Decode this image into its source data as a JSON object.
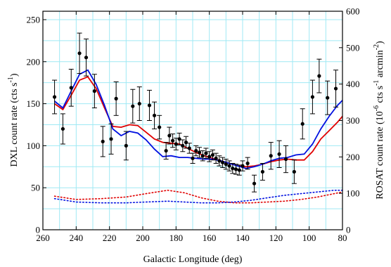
{
  "colors": {
    "grid": "#9fe9f4",
    "points": "#000000",
    "red": "#e00000",
    "blue": "#0010e0"
  },
  "axes": {
    "x_label": "Galactic Longitude (deg)",
    "y_left_label": "DXL count rate (cts s",
    "y_left_label_sup": "-1",
    "y_left_label_end": ")",
    "y_right_label": "ROSAT count rate (10",
    "y_right_label_sup1": "-6",
    "y_right_label_mid": " cts s",
    "y_right_label_sup2": "-1",
    "y_right_label_mid2": " arcmin",
    "y_right_label_sup3": "-2",
    "y_right_label_end": ")"
  },
  "chart_data": {
    "type": "scatter",
    "x_range": [
      260,
      80
    ],
    "y_left_range": [
      0,
      260
    ],
    "y_right_range": [
      0,
      600
    ],
    "x_ticks": [
      "260",
      "240",
      "220",
      "200",
      "180",
      "160",
      "140",
      "120",
      "100",
      "80"
    ],
    "x_tick_values": [
      260,
      240,
      220,
      200,
      180,
      160,
      140,
      120,
      100,
      80
    ],
    "y_left_ticks": [
      "0",
      "50",
      "100",
      "150",
      "200",
      "250"
    ],
    "y_left_tick_values": [
      0,
      50,
      100,
      150,
      200,
      250
    ],
    "y_right_ticks": [
      "0",
      "100",
      "200",
      "300",
      "400",
      "500",
      "600"
    ],
    "y_right_tick_values": [
      0,
      100,
      200,
      300,
      400,
      500,
      600
    ],
    "grid": true,
    "points": [
      {
        "x": 253,
        "y": 158,
        "err": 20
      },
      {
        "x": 248,
        "y": 120,
        "err": 18
      },
      {
        "x": 243,
        "y": 169,
        "err": 22
      },
      {
        "x": 238,
        "y": 210,
        "err": 24
      },
      {
        "x": 234,
        "y": 205,
        "err": 22
      },
      {
        "x": 229,
        "y": 165,
        "err": 20
      },
      {
        "x": 224,
        "y": 105,
        "err": 18
      },
      {
        "x": 219,
        "y": 108,
        "err": 18
      },
      {
        "x": 216,
        "y": 156,
        "err": 20
      },
      {
        "x": 210,
        "y": 100,
        "err": 17
      },
      {
        "x": 206,
        "y": 147,
        "err": 20
      },
      {
        "x": 202,
        "y": 150,
        "err": 20
      },
      {
        "x": 196,
        "y": 148,
        "err": 18
      },
      {
        "x": 193,
        "y": 136,
        "err": 16
      },
      {
        "x": 190,
        "y": 122,
        "err": 14
      },
      {
        "x": 186,
        "y": 94,
        "err": 10
      },
      {
        "x": 184,
        "y": 112,
        "err": 10
      },
      {
        "x": 182,
        "y": 106,
        "err": 8
      },
      {
        "x": 180,
        "y": 102,
        "err": 7
      },
      {
        "x": 178,
        "y": 108,
        "err": 7
      },
      {
        "x": 176,
        "y": 100,
        "err": 7
      },
      {
        "x": 174,
        "y": 104,
        "err": 7
      },
      {
        "x": 172,
        "y": 97,
        "err": 6
      },
      {
        "x": 170,
        "y": 85,
        "err": 6
      },
      {
        "x": 168,
        "y": 94,
        "err": 6
      },
      {
        "x": 166,
        "y": 92,
        "err": 6
      },
      {
        "x": 164,
        "y": 88,
        "err": 6
      },
      {
        "x": 162,
        "y": 91,
        "err": 6
      },
      {
        "x": 160,
        "y": 87,
        "err": 6
      },
      {
        "x": 158,
        "y": 89,
        "err": 6
      },
      {
        "x": 156,
        "y": 85,
        "err": 6
      },
      {
        "x": 154,
        "y": 82,
        "err": 6
      },
      {
        "x": 152,
        "y": 80,
        "err": 6
      },
      {
        "x": 150,
        "y": 78,
        "err": 6
      },
      {
        "x": 148,
        "y": 76,
        "err": 6
      },
      {
        "x": 146,
        "y": 73,
        "err": 6
      },
      {
        "x": 144,
        "y": 72,
        "err": 6
      },
      {
        "x": 142,
        "y": 71,
        "err": 6
      },
      {
        "x": 140,
        "y": 76,
        "err": 6
      },
      {
        "x": 137,
        "y": 79,
        "err": 7
      },
      {
        "x": 133,
        "y": 55,
        "err": 10
      },
      {
        "x": 128,
        "y": 69,
        "err": 10
      },
      {
        "x": 123,
        "y": 88,
        "err": 16
      },
      {
        "x": 118,
        "y": 90,
        "err": 16
      },
      {
        "x": 114,
        "y": 84,
        "err": 16
      },
      {
        "x": 109,
        "y": 69,
        "err": 14
      },
      {
        "x": 104,
        "y": 126,
        "err": 18
      },
      {
        "x": 98,
        "y": 158,
        "err": 20
      },
      {
        "x": 94,
        "y": 183,
        "err": 20
      },
      {
        "x": 89,
        "y": 157,
        "err": 20
      },
      {
        "x": 84,
        "y": 168,
        "err": 22
      }
    ],
    "series": [
      {
        "color": "red",
        "style": "solid",
        "axis": "left",
        "x": [
          253,
          248,
          243,
          238,
          233,
          228,
          223,
          218,
          213,
          208,
          203,
          198,
          193,
          188,
          183,
          178,
          173,
          168,
          163,
          158,
          153,
          148,
          143,
          138,
          133,
          128,
          123,
          118,
          113,
          108,
          103,
          98,
          93,
          88,
          83,
          80
        ],
        "y": [
          150,
          143,
          160,
          178,
          182,
          168,
          145,
          123,
          122,
          125,
          124,
          116,
          108,
          104,
          103,
          102,
          97,
          92,
          88,
          85,
          82,
          79,
          76,
          75,
          76,
          78,
          81,
          83,
          84,
          83,
          83,
          93,
          108,
          118,
          128,
          135
        ]
      },
      {
        "color": "blue",
        "style": "solid",
        "axis": "left",
        "x": [
          253,
          248,
          243,
          238,
          233,
          228,
          223,
          218,
          213,
          208,
          203,
          198,
          193,
          188,
          183,
          178,
          173,
          168,
          163,
          158,
          153,
          148,
          143,
          138,
          133,
          128,
          123,
          118,
          113,
          108,
          103,
          98,
          93,
          88,
          83,
          80
        ],
        "y": [
          153,
          145,
          165,
          185,
          190,
          173,
          148,
          120,
          112,
          117,
          115,
          107,
          96,
          87,
          88,
          86,
          86,
          85,
          84,
          84,
          82,
          79,
          76,
          73,
          75,
          78,
          82,
          85,
          86,
          89,
          90,
          102,
          120,
          135,
          148,
          154
        ]
      },
      {
        "color": "red",
        "style": "dotted",
        "axis": "left",
        "x": [
          253,
          240,
          225,
          210,
          198,
          185,
          175,
          165,
          155,
          145,
          135,
          125,
          115,
          105,
          95,
          85,
          80
        ],
        "y": [
          40,
          36,
          37,
          39,
          43,
          47,
          44,
          38,
          34,
          32,
          32,
          33,
          34,
          36,
          39,
          43,
          45
        ]
      },
      {
        "color": "blue",
        "style": "dotted",
        "axis": "left",
        "x": [
          253,
          240,
          225,
          210,
          198,
          185,
          175,
          165,
          155,
          145,
          135,
          125,
          115,
          105,
          95,
          85,
          80
        ],
        "y": [
          37,
          33,
          32,
          32,
          33,
          34,
          33,
          32,
          32,
          33,
          35,
          38,
          41,
          43,
          45,
          47,
          47
        ]
      }
    ]
  }
}
